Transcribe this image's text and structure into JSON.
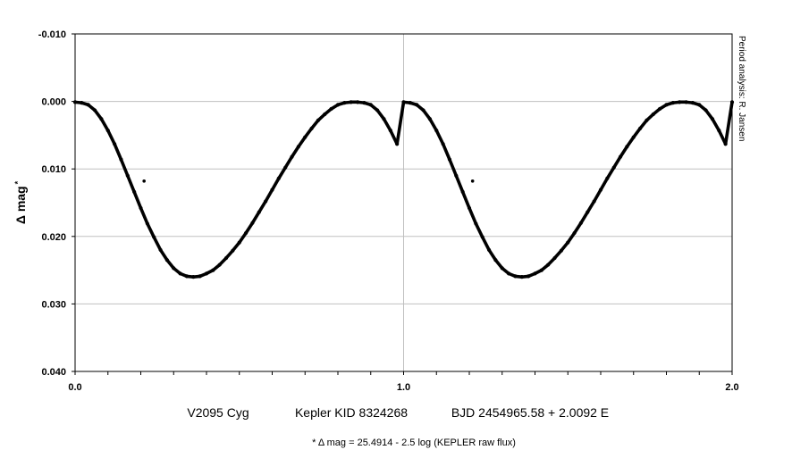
{
  "chart_data": {
    "type": "scatter",
    "xlabel": "",
    "ylabel": "Δ mag",
    "ylabel_marker": "*",
    "xlim": [
      0.0,
      2.0
    ],
    "ylim": [
      -0.01,
      0.04
    ],
    "y_inverted": true,
    "grid": true,
    "x_ticks": [
      0.0,
      1.0,
      2.0
    ],
    "x_tick_labels": [
      "0.0",
      "1.0",
      "2.0"
    ],
    "y_ticks": [
      -0.01,
      0.0,
      0.01,
      0.02,
      0.03,
      0.04
    ],
    "y_tick_labels": [
      "-0.010",
      "0.000",
      "0.010",
      "0.020",
      "0.030",
      "0.040"
    ],
    "x_minor_step": 0.1,
    "marker_color": "#000000",
    "series": [
      {
        "x": [
          0.0,
          0.02,
          0.04,
          0.06,
          0.08,
          0.1,
          0.12,
          0.14,
          0.16,
          0.18,
          0.2,
          0.22,
          0.24,
          0.26,
          0.28,
          0.3,
          0.32,
          0.34,
          0.36,
          0.38,
          0.4,
          0.42,
          0.44,
          0.46,
          0.48,
          0.5,
          0.52,
          0.54,
          0.56,
          0.58,
          0.6,
          0.62,
          0.64,
          0.66,
          0.68,
          0.7,
          0.72,
          0.74,
          0.76,
          0.78,
          0.8,
          0.82,
          0.84,
          0.86,
          0.88,
          0.9,
          0.92,
          0.94,
          0.96,
          0.98,
          1.0,
          1.02,
          1.04,
          1.06,
          1.08,
          1.1,
          1.12,
          1.14,
          1.16,
          1.18,
          1.2,
          1.22,
          1.24,
          1.26,
          1.28,
          1.3,
          1.32,
          1.34,
          1.36,
          1.38,
          1.4,
          1.42,
          1.44,
          1.46,
          1.48,
          1.5,
          1.52,
          1.54,
          1.56,
          1.58,
          1.6,
          1.62,
          1.64,
          1.66,
          1.68,
          1.7,
          1.72,
          1.74,
          1.76,
          1.78,
          1.8,
          1.82,
          1.84,
          1.86,
          1.88,
          1.9,
          1.92,
          1.94,
          1.96,
          1.98,
          2.0
        ],
        "y": [
          0.0001,
          0.0002,
          0.0005,
          0.0013,
          0.0026,
          0.0043,
          0.0063,
          0.0086,
          0.011,
          0.0134,
          0.0158,
          0.0181,
          0.0201,
          0.022,
          0.0235,
          0.0247,
          0.0255,
          0.0259,
          0.026,
          0.0259,
          0.0255,
          0.025,
          0.0242,
          0.0232,
          0.0221,
          0.0209,
          0.0195,
          0.018,
          0.0164,
          0.0148,
          0.0131,
          0.0114,
          0.0098,
          0.0082,
          0.0067,
          0.0053,
          0.004,
          0.0028,
          0.0019,
          0.0011,
          0.0005,
          0.0002,
          0.0001,
          0.0001,
          0.0002,
          0.0005,
          0.0013,
          0.0026,
          0.0043,
          0.0063,
          0.0001,
          0.0002,
          0.0005,
          0.0013,
          0.0026,
          0.0043,
          0.0063,
          0.0086,
          0.011,
          0.0134,
          0.0158,
          0.0181,
          0.0201,
          0.022,
          0.0235,
          0.0247,
          0.0255,
          0.0259,
          0.026,
          0.0259,
          0.0255,
          0.025,
          0.0242,
          0.0232,
          0.0221,
          0.0209,
          0.0195,
          0.018,
          0.0164,
          0.0148,
          0.0131,
          0.0114,
          0.0098,
          0.0082,
          0.0067,
          0.0053,
          0.004,
          0.0028,
          0.0019,
          0.0011,
          0.0005,
          0.0002,
          0.0001,
          0.0001,
          0.0002,
          0.0005,
          0.0013,
          0.0026,
          0.0043,
          0.0063,
          0.0001
        ]
      }
    ],
    "outliers": [
      {
        "x": 0.21,
        "y": 0.0118
      },
      {
        "x": 1.21,
        "y": 0.0118
      }
    ]
  },
  "side_note": "Period analysis: R. Jansen",
  "caption": {
    "star": "V2095 Cyg",
    "catalog": "Kepler KID 8324268",
    "ephemeris": "BJD 2454965.58 + 2.0092 E"
  },
  "footnote": "* Δ mag = 25.4914 - 2.5 log (KEPLER raw flux)"
}
